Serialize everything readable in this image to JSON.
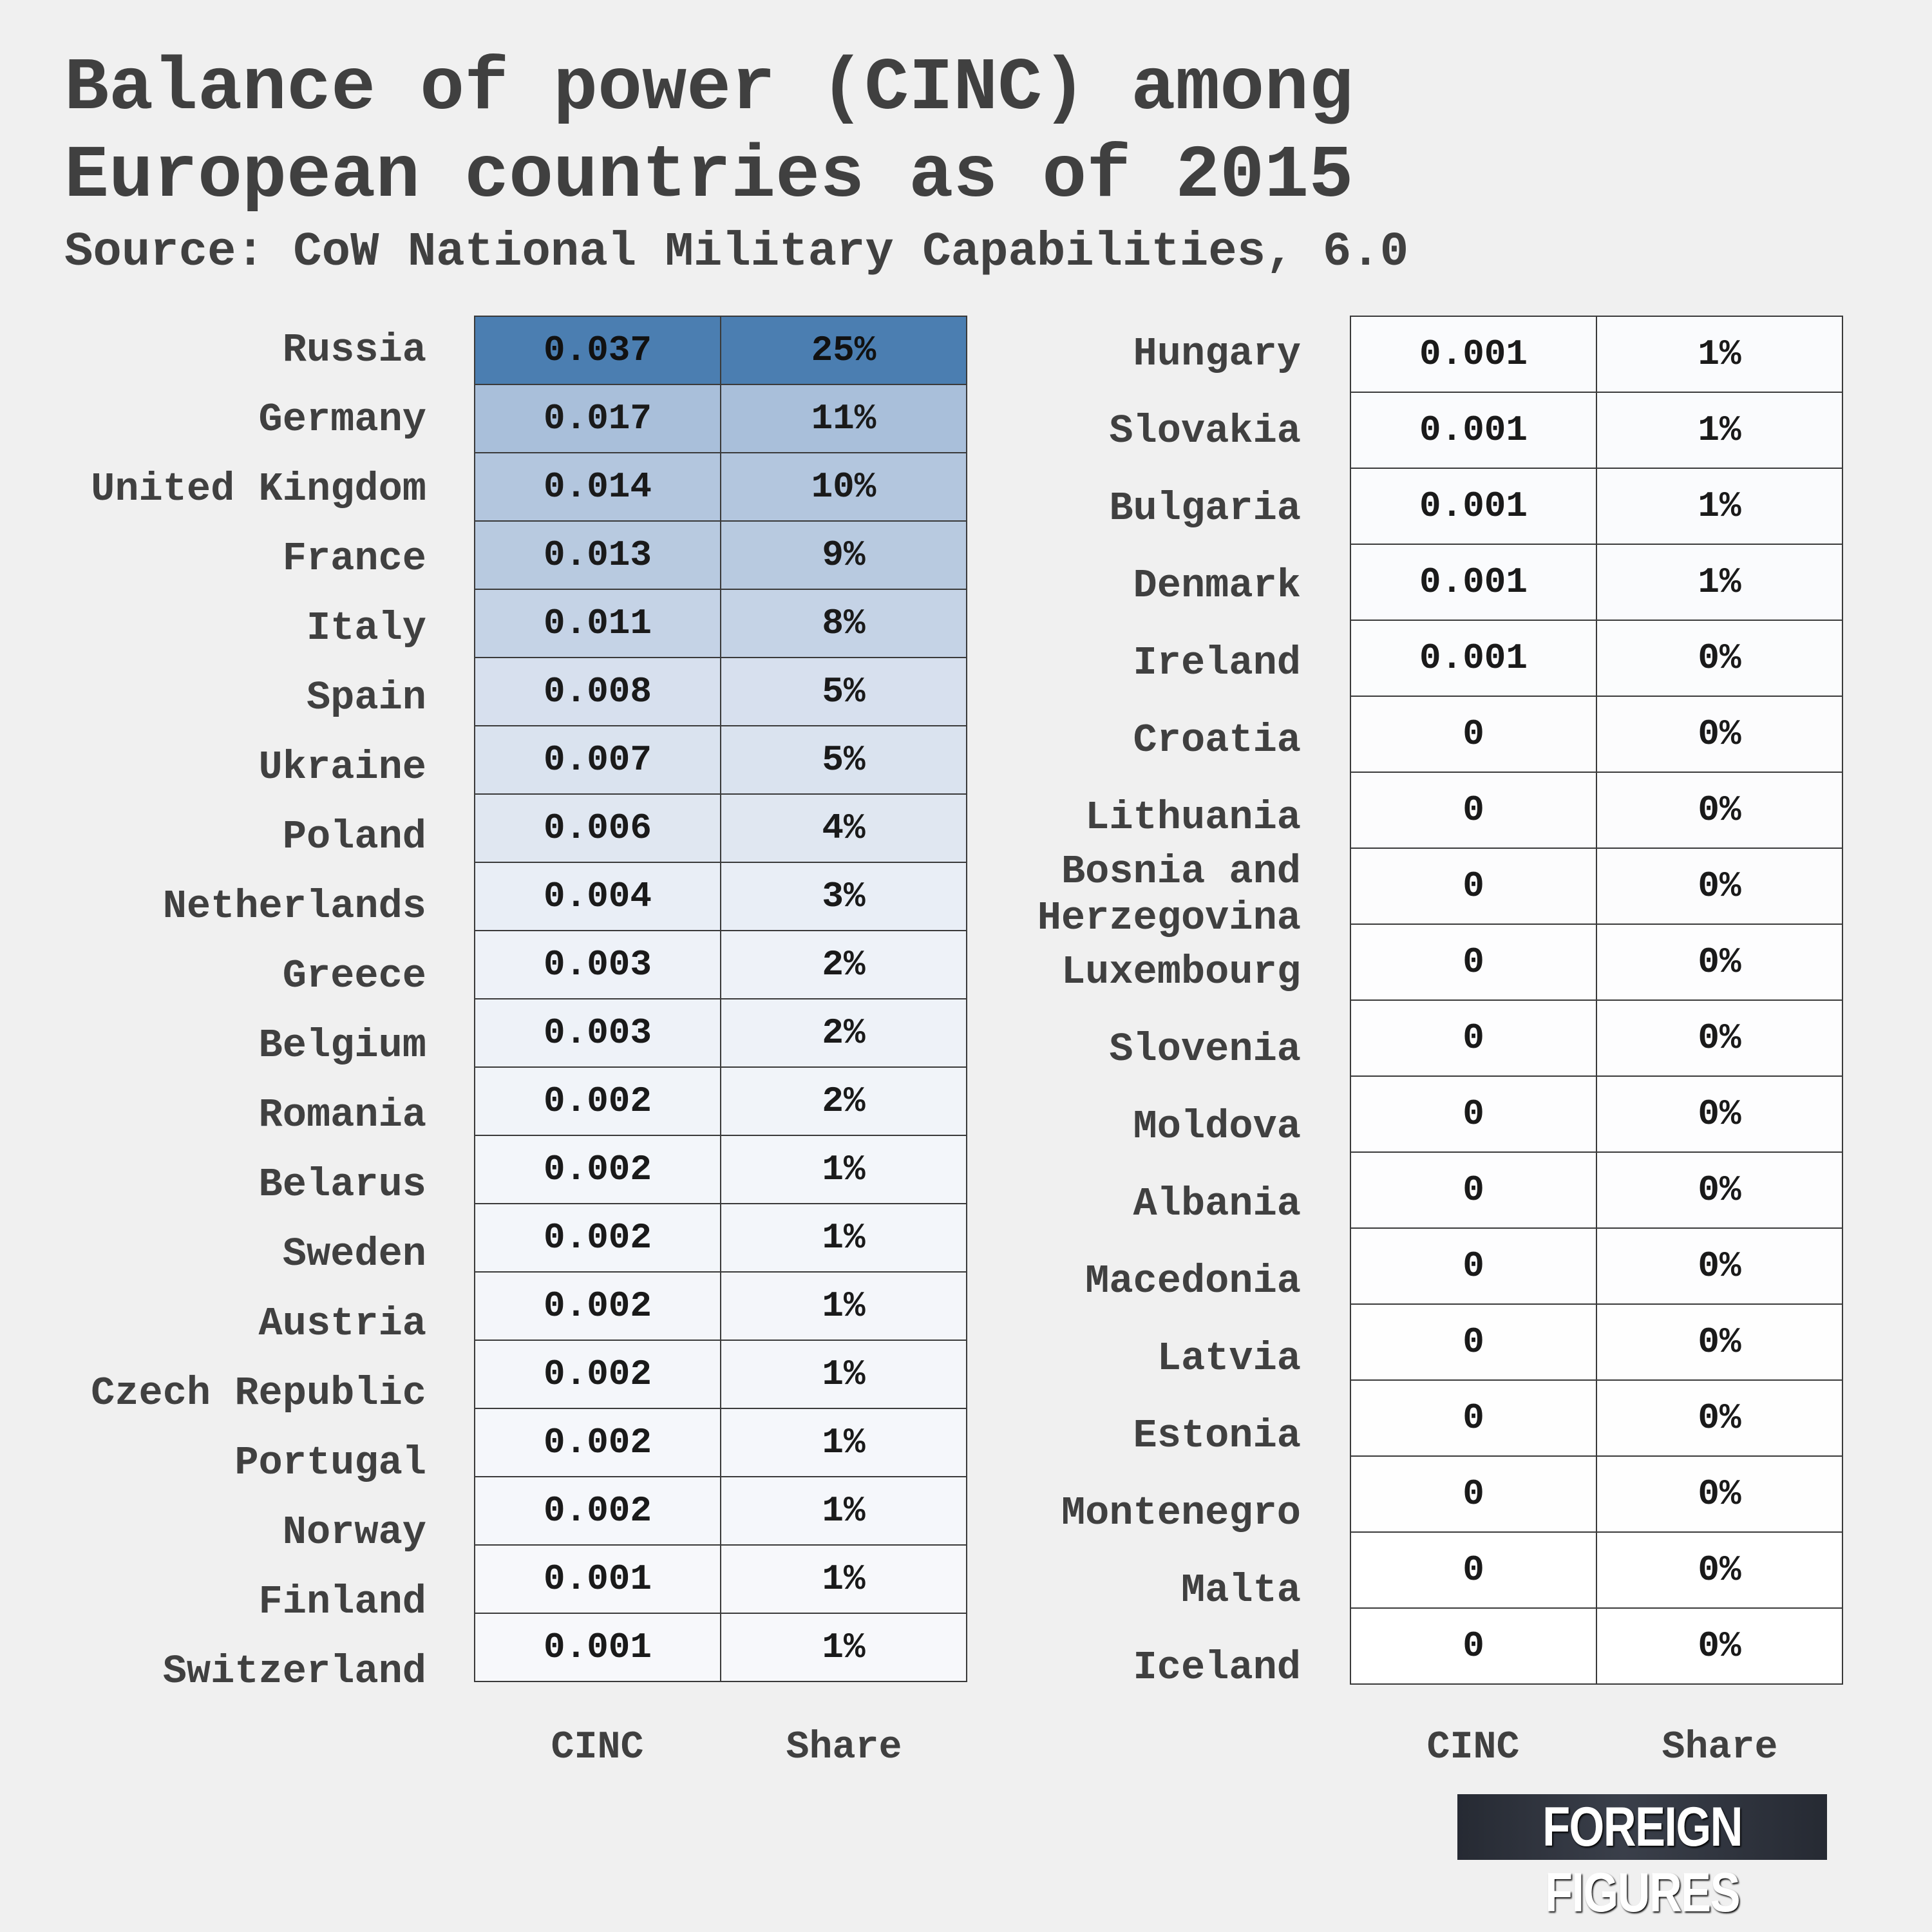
{
  "header": {
    "title": "Balance of power (CINC) among European countries as of 2015",
    "subtitle": "Source: CoW National Military Capabilities, 6.0"
  },
  "chart_data": {
    "type": "table",
    "title": "Balance of power (CINC) among European countries as of 2015",
    "subtitle": "Source: CoW National Military Capabilities, 6.0",
    "columns": [
      "CINC",
      "Share"
    ],
    "left_table": [
      {
        "country": "Russia",
        "cinc": "0.037",
        "share": "25%",
        "color": "#4b7eb1"
      },
      {
        "country": "Germany",
        "cinc": "0.017",
        "share": "11%",
        "color": "#a9bfda"
      },
      {
        "country": "United Kingdom",
        "cinc": "0.014",
        "share": "10%",
        "color": "#b3c6de"
      },
      {
        "country": "France",
        "cinc": "0.013",
        "share": "9%",
        "color": "#b8cae0"
      },
      {
        "country": "Italy",
        "cinc": "0.011",
        "share": "8%",
        "color": "#c5d3e6"
      },
      {
        "country": "Spain",
        "cinc": "0.008",
        "share": "5%",
        "color": "#d7e0ee"
      },
      {
        "country": "Ukraine",
        "cinc": "0.007",
        "share": "5%",
        "color": "#dae3ef"
      },
      {
        "country": "Poland",
        "cinc": "0.006",
        "share": "4%",
        "color": "#e0e7f1"
      },
      {
        "country": "Netherlands",
        "cinc": "0.004",
        "share": "3%",
        "color": "#e9eef6"
      },
      {
        "country": "Greece",
        "cinc": "0.003",
        "share": "2%",
        "color": "#eef2f8"
      },
      {
        "country": "Belgium",
        "cinc": "0.003",
        "share": "2%",
        "color": "#eef2f8"
      },
      {
        "country": "Romania",
        "cinc": "0.002",
        "share": "2%",
        "color": "#f1f4f9"
      },
      {
        "country": "Belarus",
        "cinc": "0.002",
        "share": "1%",
        "color": "#f3f6fa"
      },
      {
        "country": "Sweden",
        "cinc": "0.002",
        "share": "1%",
        "color": "#f3f6fa"
      },
      {
        "country": "Austria",
        "cinc": "0.002",
        "share": "1%",
        "color": "#f4f6fa"
      },
      {
        "country": "Czech Republic",
        "cinc": "0.002",
        "share": "1%",
        "color": "#f4f6fa"
      },
      {
        "country": "Portugal",
        "cinc": "0.002",
        "share": "1%",
        "color": "#f5f7fb"
      },
      {
        "country": "Norway",
        "cinc": "0.002",
        "share": "1%",
        "color": "#f5f7fb"
      },
      {
        "country": "Finland",
        "cinc": "0.001",
        "share": "1%",
        "color": "#f7f8fb"
      },
      {
        "country": "Switzerland",
        "cinc": "0.001",
        "share": "1%",
        "color": "#f7f8fb"
      }
    ],
    "right_table": [
      {
        "country": "Hungary",
        "cinc": "0.001",
        "share": "1%",
        "color": "#fafbfd"
      },
      {
        "country": "Slovakia",
        "cinc": "0.001",
        "share": "1%",
        "color": "#fafbfd"
      },
      {
        "country": "Bulgaria",
        "cinc": "0.001",
        "share": "1%",
        "color": "#fafbfd"
      },
      {
        "country": "Denmark",
        "cinc": "0.001",
        "share": "1%",
        "color": "#fafbfd"
      },
      {
        "country": "Ireland",
        "cinc": "0.001",
        "share": "0%",
        "color": "#fbfcfd"
      },
      {
        "country": "Croatia",
        "cinc": "0",
        "share": "0%",
        "color": "#fcfcfd"
      },
      {
        "country": "Lithuania",
        "cinc": "0",
        "share": "0%",
        "color": "#fcfcfd"
      },
      {
        "country": "Bosnia and Herzegovina",
        "cinc": "0",
        "share": "0%",
        "color": "#fcfcfd"
      },
      {
        "country": "Luxembourg",
        "cinc": "0",
        "share": "0%",
        "color": "#fdfdfe"
      },
      {
        "country": "Slovenia",
        "cinc": "0",
        "share": "0%",
        "color": "#fdfdfe"
      },
      {
        "country": "Moldova",
        "cinc": "0",
        "share": "0%",
        "color": "#fdfdfe"
      },
      {
        "country": "Albania",
        "cinc": "0",
        "share": "0%",
        "color": "#fdfdfe"
      },
      {
        "country": "Macedonia",
        "cinc": "0",
        "share": "0%",
        "color": "#fdfdfe"
      },
      {
        "country": "Latvia",
        "cinc": "0",
        "share": "0%",
        "color": "#fefefe"
      },
      {
        "country": "Estonia",
        "cinc": "0",
        "share": "0%",
        "color": "#fefefe"
      },
      {
        "country": "Montenegro",
        "cinc": "0",
        "share": "0%",
        "color": "#fefefe"
      },
      {
        "country": "Malta",
        "cinc": "0",
        "share": "0%",
        "color": "#ffffff"
      },
      {
        "country": "Iceland",
        "cinc": "0",
        "share": "0%",
        "color": "#ffffff"
      }
    ]
  },
  "footer": {
    "col_cinc": "CINC",
    "col_share": "Share",
    "logo_text": "FOREIGN FIGURES"
  }
}
